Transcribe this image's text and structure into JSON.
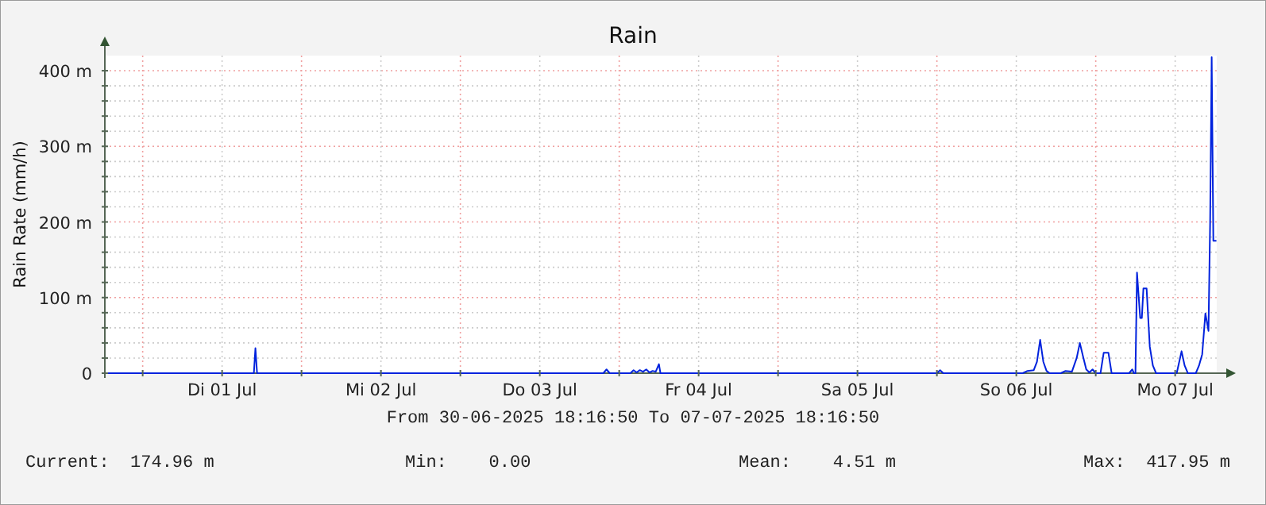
{
  "chart_data": {
    "type": "line",
    "title": "Rain",
    "ylabel": "Rain Rate  (mm/h)",
    "xlim": [
      "2025-06-30T18:17",
      "2025-07-07T18:17"
    ],
    "xticks": [
      {
        "value": "2025-07-01T00:00",
        "label": null
      },
      {
        "value": "2025-07-01T12:00",
        "label": "Di 01 Jul"
      },
      {
        "value": "2025-07-02T00:00",
        "label": null
      },
      {
        "value": "2025-07-02T12:00",
        "label": "Mi 02 Jul"
      },
      {
        "value": "2025-07-03T00:00",
        "label": null
      },
      {
        "value": "2025-07-03T12:00",
        "label": "Do 03 Jul"
      },
      {
        "value": "2025-07-04T00:00",
        "label": null
      },
      {
        "value": "2025-07-04T12:00",
        "label": "Fr 04 Jul"
      },
      {
        "value": "2025-07-05T00:00",
        "label": null
      },
      {
        "value": "2025-07-05T12:00",
        "label": "Sa 05 Jul"
      },
      {
        "value": "2025-07-06T00:00",
        "label": null
      },
      {
        "value": "2025-07-06T12:00",
        "label": "So 06 Jul"
      },
      {
        "value": "2025-07-07T00:00",
        "label": null
      },
      {
        "value": "2025-07-07T12:00",
        "label": "Mo 07 Jul"
      }
    ],
    "ylim": [
      0,
      420
    ],
    "yticks": [
      0,
      {
        "value": 20,
        "label": null
      },
      {
        "value": 40,
        "label": null
      },
      {
        "value": 60,
        "label": null
      },
      {
        "value": 80,
        "label": null
      },
      {
        "value": 100,
        "label": "100 m"
      },
      {
        "value": 120,
        "label": null
      },
      {
        "value": 140,
        "label": null
      },
      {
        "value": 160,
        "label": null
      },
      {
        "value": 180,
        "label": null
      },
      {
        "value": 200,
        "label": "200 m"
      },
      {
        "value": 220,
        "label": null
      },
      {
        "value": 240,
        "label": null
      },
      {
        "value": 260,
        "label": null
      },
      {
        "value": 280,
        "label": null
      },
      {
        "value": 300,
        "label": "300 m"
      },
      {
        "value": 320,
        "label": null
      },
      {
        "value": 340,
        "label": null
      },
      {
        "value": 360,
        "label": null
      },
      {
        "value": 380,
        "label": null
      },
      {
        "value": 400,
        "label": "400 m"
      }
    ],
    "grid": true,
    "line_style": "solid",
    "x": [
      "2025-06-30T18:17",
      "2025-07-01T16:48",
      "2025-07-01T17:02",
      "2025-07-01T17:17",
      "2025-07-03T21:36",
      "2025-07-03T22:05",
      "2025-07-03T22:34",
      "2025-07-04T01:41",
      "2025-07-04T02:10",
      "2025-07-04T02:38",
      "2025-07-04T03:07",
      "2025-07-04T03:36",
      "2025-07-04T04:05",
      "2025-07-04T04:34",
      "2025-07-04T05:02",
      "2025-07-04T05:31",
      "2025-07-04T06:00",
      "2025-07-04T06:14",
      "2025-07-06T00:00",
      "2025-07-06T00:29",
      "2025-07-06T00:58",
      "2025-07-06T12:58",
      "2025-07-06T13:41",
      "2025-07-06T14:38",
      "2025-07-06T15:07",
      "2025-07-06T15:36",
      "2025-07-06T16:05",
      "2025-07-06T16:34",
      "2025-07-06T17:02",
      "2025-07-06T18:43",
      "2025-07-06T19:26",
      "2025-07-06T20:24",
      "2025-07-06T21:07",
      "2025-07-06T21:36",
      "2025-07-06T22:05",
      "2025-07-06T22:34",
      "2025-07-06T23:02",
      "2025-07-06T23:31",
      "2025-07-07T00:00",
      "2025-07-07T00:43",
      "2025-07-07T01:12",
      "2025-07-07T01:55",
      "2025-07-07T02:24",
      "2025-07-07T05:02",
      "2025-07-07T05:31",
      "2025-07-07T05:46",
      "2025-07-07T06:00",
      "2025-07-07T06:14",
      "2025-07-07T06:43",
      "2025-07-07T06:58",
      "2025-07-07T07:12",
      "2025-07-07T07:41",
      "2025-07-07T08:10",
      "2025-07-07T08:38",
      "2025-07-07T09:07",
      "2025-07-07T12:14",
      "2025-07-07T12:58",
      "2025-07-07T13:26",
      "2025-07-07T13:55",
      "2025-07-07T15:07",
      "2025-07-07T15:36",
      "2025-07-07T16:05",
      "2025-07-07T16:34",
      "2025-07-07T17:02",
      "2025-07-07T17:17",
      "2025-07-07T17:31",
      "2025-07-07T17:46",
      "2025-07-07T18:14"
    ],
    "series": [
      {
        "color": "#0022dd",
        "values": [
          0,
          0,
          33,
          0,
          0,
          5,
          0,
          0,
          4,
          1,
          4,
          2,
          5,
          1,
          3,
          2,
          12,
          0,
          0,
          4,
          0,
          0,
          3,
          4,
          15,
          44,
          15,
          3,
          0,
          0,
          3,
          2,
          20,
          40,
          22,
          5,
          1,
          5,
          0,
          0,
          27,
          27,
          0,
          0,
          5,
          0,
          0,
          133,
          73,
          73,
          112,
          112,
          35,
          10,
          0,
          0,
          29,
          10,
          0,
          0,
          10,
          25,
          79,
          56,
          200,
          418,
          175,
          175
        ]
      }
    ],
    "annotations": [
      "From 30-06-2025 18:16:50 To 07-07-2025 18:16:50",
      "Current:  174.96 m",
      "Min:    0.00",
      "Mean:    4.51 m",
      "Max:  417.95 m"
    ]
  }
}
